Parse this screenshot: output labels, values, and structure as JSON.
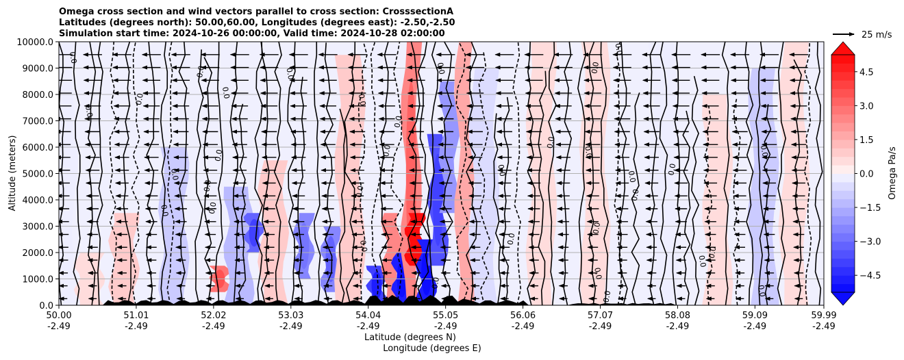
{
  "chart_data": {
    "type": "heatmap",
    "title_lines": [
      "Omega cross section and wind vectors parallel to cross section: CrosssectionA",
      "Latitudes (degrees north): 50.00,60.00, Longitudes (degrees east): -2.50,-2.50",
      "Simulation start time: 2024-10-26 00:00:00, Valid time: 2024-10-28 02:00:00"
    ],
    "xlabel": "Latitude (degrees N)",
    "xlabel2": "Longitude (degrees E)",
    "ylabel": "Altitude (meters)",
    "xlim": [
      50.0,
      59.99
    ],
    "ylim": [
      0,
      10000
    ],
    "x_ticks": [
      {
        "lat": "50.00",
        "lon": "-2.49",
        "value": 50.0
      },
      {
        "lat": "51.01",
        "lon": "-2.49",
        "value": 51.01
      },
      {
        "lat": "52.02",
        "lon": "-2.49",
        "value": 52.02
      },
      {
        "lat": "53.03",
        "lon": "-2.49",
        "value": 53.03
      },
      {
        "lat": "54.04",
        "lon": "-2.49",
        "value": 54.04
      },
      {
        "lat": "55.05",
        "lon": "-2.49",
        "value": 55.05
      },
      {
        "lat": "56.06",
        "lon": "-2.49",
        "value": 56.06
      },
      {
        "lat": "57.07",
        "lon": "-2.49",
        "value": 57.07
      },
      {
        "lat": "58.08",
        "lon": "-2.49",
        "value": 58.08
      },
      {
        "lat": "59.09",
        "lon": "-2.49",
        "value": 59.09
      },
      {
        "lat": "59.99",
        "lon": "-2.49",
        "value": 59.99
      }
    ],
    "y_ticks": [
      {
        "label": "0.0",
        "value": 0
      },
      {
        "label": "1000.0",
        "value": 1000
      },
      {
        "label": "2000.0",
        "value": 2000
      },
      {
        "label": "3000.0",
        "value": 3000
      },
      {
        "label": "4000.0",
        "value": 4000
      },
      {
        "label": "5000.0",
        "value": 5000
      },
      {
        "label": "6000.0",
        "value": 6000
      },
      {
        "label": "7000.0",
        "value": 7000
      },
      {
        "label": "8000.0",
        "value": 8000
      },
      {
        "label": "9000.0",
        "value": 9000
      },
      {
        "label": "10000.0",
        "value": 10000
      }
    ],
    "grid": "horizontal",
    "colorbar": {
      "label": "Omega Pa/s",
      "range": [
        -5.25,
        5.25
      ],
      "levels": 28,
      "extend": "both",
      "ticks": [
        {
          "label": "4.5",
          "value": 4.5
        },
        {
          "label": "3.0",
          "value": 3.0
        },
        {
          "label": "1.5",
          "value": 1.5
        },
        {
          "label": "0.0",
          "value": 0.0
        },
        {
          "label": "−1.5",
          "value": -1.5
        },
        {
          "label": "−3.0",
          "value": -3.0
        },
        {
          "label": "−4.5",
          "value": -4.5
        }
      ],
      "colors": {
        "neg": "#0000ff",
        "pos": "#ff0000",
        "mid": "#ffffff"
      }
    },
    "quiver_key": {
      "label": "25 m/s",
      "speed": 25
    },
    "wind": {
      "direction": "toward decreasing latitude",
      "upper_speed": 25,
      "lower_speed": 10
    },
    "contour_label": "0.0",
    "terrain_color": "#000000",
    "omega_features": [
      {
        "lat": 50.05,
        "alt_bottom": 0,
        "alt_top": 10000,
        "value": -0.3
      },
      {
        "lat": 50.4,
        "alt_bottom": 0,
        "alt_top": 2000,
        "value": 0.5
      },
      {
        "lat": 50.85,
        "alt_bottom": 0,
        "alt_top": 3500,
        "value": 0.8
      },
      {
        "lat": 51.5,
        "alt_bottom": 0,
        "alt_top": 6000,
        "value": -0.8
      },
      {
        "lat": 52.1,
        "alt_bottom": 500,
        "alt_top": 1500,
        "value": 3.0
      },
      {
        "lat": 52.35,
        "alt_bottom": 0,
        "alt_top": 4500,
        "value": -1.2
      },
      {
        "lat": 52.55,
        "alt_bottom": 2000,
        "alt_top": 3500,
        "value": -3.2
      },
      {
        "lat": 52.8,
        "alt_bottom": 0,
        "alt_top": 5500,
        "value": 1.0
      },
      {
        "lat": 53.2,
        "alt_bottom": 1000,
        "alt_top": 3500,
        "value": -2.5
      },
      {
        "lat": 53.55,
        "alt_bottom": 500,
        "alt_top": 3000,
        "value": -2.6
      },
      {
        "lat": 53.8,
        "alt_bottom": 0,
        "alt_top": 9500,
        "value": 0.9
      },
      {
        "lat": 54.15,
        "alt_bottom": 0,
        "alt_top": 1500,
        "value": -3.8
      },
      {
        "lat": 54.35,
        "alt_bottom": 0,
        "alt_top": 3500,
        "value": 2.4
      },
      {
        "lat": 54.48,
        "alt_bottom": 0,
        "alt_top": 2000,
        "value": -4.8
      },
      {
        "lat": 54.6,
        "alt_bottom": 0,
        "alt_top": 10000,
        "value": 2.6
      },
      {
        "lat": 54.65,
        "alt_bottom": 1500,
        "alt_top": 3500,
        "value": 5.0
      },
      {
        "lat": 54.8,
        "alt_bottom": 0,
        "alt_top": 2500,
        "value": -4.6
      },
      {
        "lat": 54.95,
        "alt_bottom": 1500,
        "alt_top": 6500,
        "value": -3.4
      },
      {
        "lat": 55.1,
        "alt_bottom": 3500,
        "alt_top": 8500,
        "value": -2.0
      },
      {
        "lat": 55.3,
        "alt_bottom": 0,
        "alt_top": 10000,
        "value": 1.6
      },
      {
        "lat": 55.55,
        "alt_bottom": 0,
        "alt_top": 9000,
        "value": -0.5
      },
      {
        "lat": 56.3,
        "alt_bottom": 0,
        "alt_top": 10000,
        "value": 0.6
      },
      {
        "lat": 57.0,
        "alt_bottom": 0,
        "alt_top": 10000,
        "value": 0.4
      },
      {
        "lat": 57.9,
        "alt_bottom": 0,
        "alt_top": 10000,
        "value": -0.3
      },
      {
        "lat": 58.6,
        "alt_bottom": 0,
        "alt_top": 8000,
        "value": 0.7
      },
      {
        "lat": 59.2,
        "alt_bottom": 0,
        "alt_top": 9000,
        "value": -0.8
      },
      {
        "lat": 59.6,
        "alt_bottom": 0,
        "alt_top": 10000,
        "value": 0.5
      }
    ]
  }
}
